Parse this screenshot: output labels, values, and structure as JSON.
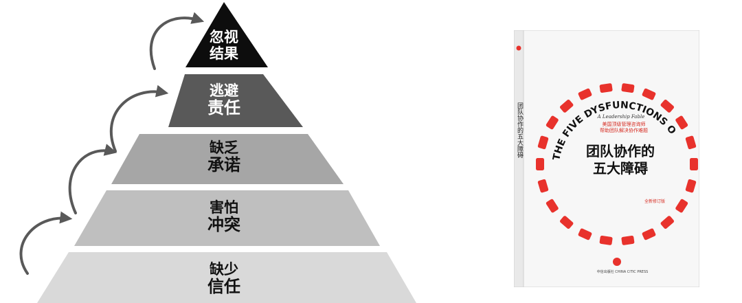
{
  "pyramid": {
    "tiers": [
      {
        "line1": "忽视",
        "line2": "结果",
        "fill": "#0d0d0d",
        "text_color": "#ffffff"
      },
      {
        "line1": "逃避",
        "line2": "责任",
        "fill": "#595959",
        "text_color": "#ffffff"
      },
      {
        "line1": "缺乏",
        "line2": "承诺",
        "fill": "#a6a6a6",
        "text_color": "#111111"
      },
      {
        "line1": "害怕",
        "line2": "冲突",
        "fill": "#bfbfbf",
        "text_color": "#111111"
      },
      {
        "line1": "缺少",
        "line2": "信任",
        "fill": "#d9d9d9",
        "text_color": "#111111"
      }
    ],
    "arrow_color": "#595959"
  },
  "book": {
    "arc_title": "THE FIVE DYSFUNCTIONS OF A TEAM",
    "subtitle": "A Leadership Fable",
    "title_line1": "团队协作的",
    "title_line2": "五大障碍",
    "spine_title": "团队协作的五大障碍",
    "tagline_1": "美国顶级管理咨询师",
    "tagline_2": "帮助团队解决协作难题",
    "edition_badge": "全新修订版",
    "publisher": "中信出版社 CHINA CITIC PRESS",
    "accent_color": "#e8322c"
  }
}
